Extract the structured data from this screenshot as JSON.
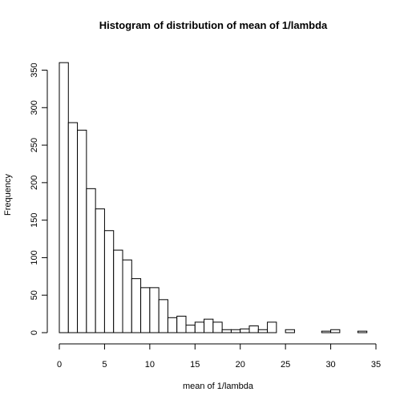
{
  "chart_data": {
    "type": "bar",
    "title": "Histogram of distribution of mean of 1/lambda",
    "xlabel": "mean of 1/lambda",
    "ylabel": "Frequency",
    "xlim": [
      0,
      35
    ],
    "ylim": [
      0,
      360
    ],
    "x_ticks": [
      0,
      5,
      10,
      15,
      20,
      25,
      30,
      35
    ],
    "y_ticks": [
      0,
      50,
      100,
      150,
      200,
      250,
      300,
      350
    ],
    "bin_width": 1,
    "bins": [
      {
        "start": 0,
        "end": 1,
        "value": 360
      },
      {
        "start": 1,
        "end": 2,
        "value": 280
      },
      {
        "start": 2,
        "end": 3,
        "value": 270
      },
      {
        "start": 3,
        "end": 4,
        "value": 192
      },
      {
        "start": 4,
        "end": 5,
        "value": 165
      },
      {
        "start": 5,
        "end": 6,
        "value": 136
      },
      {
        "start": 6,
        "end": 7,
        "value": 110
      },
      {
        "start": 7,
        "end": 8,
        "value": 97
      },
      {
        "start": 8,
        "end": 9,
        "value": 72
      },
      {
        "start": 9,
        "end": 10,
        "value": 60
      },
      {
        "start": 10,
        "end": 11,
        "value": 60
      },
      {
        "start": 11,
        "end": 12,
        "value": 44
      },
      {
        "start": 12,
        "end": 13,
        "value": 20
      },
      {
        "start": 13,
        "end": 14,
        "value": 22
      },
      {
        "start": 14,
        "end": 15,
        "value": 10
      },
      {
        "start": 15,
        "end": 16,
        "value": 14
      },
      {
        "start": 16,
        "end": 17,
        "value": 18
      },
      {
        "start": 17,
        "end": 18,
        "value": 14
      },
      {
        "start": 18,
        "end": 19,
        "value": 4
      },
      {
        "start": 19,
        "end": 20,
        "value": 4
      },
      {
        "start": 20,
        "end": 21,
        "value": 5
      },
      {
        "start": 21,
        "end": 22,
        "value": 9
      },
      {
        "start": 22,
        "end": 23,
        "value": 4
      },
      {
        "start": 23,
        "end": 24,
        "value": 14
      },
      {
        "start": 24,
        "end": 25,
        "value": 0
      },
      {
        "start": 25,
        "end": 26,
        "value": 4
      },
      {
        "start": 26,
        "end": 27,
        "value": 0
      },
      {
        "start": 27,
        "end": 28,
        "value": 0
      },
      {
        "start": 28,
        "end": 29,
        "value": 0
      },
      {
        "start": 29,
        "end": 30,
        "value": 2
      },
      {
        "start": 30,
        "end": 31,
        "value": 4
      },
      {
        "start": 31,
        "end": 32,
        "value": 0
      },
      {
        "start": 32,
        "end": 33,
        "value": 0
      },
      {
        "start": 33,
        "end": 34,
        "value": 2
      }
    ],
    "grid": false,
    "bar_fill": "#ffffff",
    "bar_stroke": "#000000"
  }
}
